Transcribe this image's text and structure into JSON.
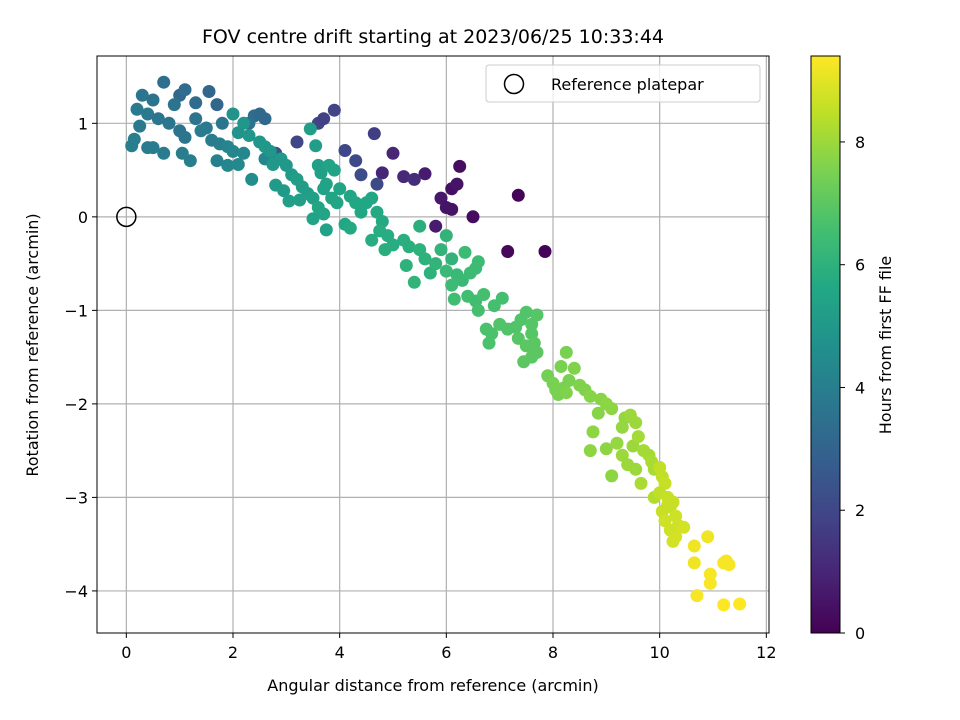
{
  "chart_data": {
    "type": "scatter",
    "title": "FOV centre drift starting at 2023/06/25 10:33:44",
    "xlabel": "Angular distance from reference (arcmin)",
    "ylabel": "Rotation from reference (arcmin)",
    "xlim": [
      -0.55,
      12.05
    ],
    "ylim": [
      -4.45,
      1.72
    ],
    "xticks": [
      0,
      2,
      4,
      6,
      8,
      10,
      12
    ],
    "yticks": [
      1,
      0,
      -1,
      -2,
      -3,
      -4
    ],
    "grid": true,
    "legend": {
      "label": "Reference platepar",
      "placement": "top-right"
    },
    "reference_point": {
      "x": 0,
      "y": 0
    },
    "colorbar": {
      "label": "Hours from first FF file",
      "colormap": "viridis",
      "range": [
        0,
        9.4
      ],
      "ticks": [
        0,
        2,
        4,
        6,
        8
      ]
    },
    "series": [
      {
        "points": [
          [
            5.0,
            0.68,
            1.0
          ],
          [
            5.6,
            0.46,
            0.7
          ],
          [
            5.9,
            0.2,
            0.6
          ],
          [
            6.0,
            0.1,
            0.5
          ],
          [
            6.1,
            0.3,
            0.4
          ],
          [
            6.2,
            0.35,
            0.5
          ],
          [
            6.25,
            0.54,
            0.3
          ],
          [
            6.5,
            0.0,
            0.3
          ],
          [
            6.1,
            0.08,
            0.5
          ],
          [
            5.8,
            -0.1,
            0.7
          ],
          [
            7.35,
            0.23,
            0.1
          ],
          [
            7.15,
            -0.37,
            0.2
          ],
          [
            7.85,
            -0.37,
            0.1
          ],
          [
            4.8,
            0.47,
            1.0
          ],
          [
            5.2,
            0.43,
            1.1
          ],
          [
            5.4,
            0.4,
            1.2
          ],
          [
            3.9,
            1.14,
            1.9
          ],
          [
            4.65,
            0.89,
            1.7
          ],
          [
            3.6,
            1.0,
            1.9
          ],
          [
            3.7,
            1.05,
            1.8
          ],
          [
            3.2,
            0.8,
            2.0
          ],
          [
            2.8,
            0.68,
            2.3
          ],
          [
            4.1,
            0.71,
            2.0
          ],
          [
            4.3,
            0.6,
            2.1
          ],
          [
            4.4,
            0.45,
            2.2
          ],
          [
            4.7,
            0.35,
            2.1
          ],
          [
            0.7,
            1.44,
            3.4
          ],
          [
            1.0,
            1.3,
            3.2
          ],
          [
            1.1,
            1.36,
            3.3
          ],
          [
            1.3,
            1.22,
            3.3
          ],
          [
            1.55,
            1.34,
            3.1
          ],
          [
            1.7,
            1.2,
            3.1
          ],
          [
            0.3,
            1.3,
            3.7
          ],
          [
            0.5,
            1.25,
            3.6
          ],
          [
            0.9,
            1.2,
            3.6
          ],
          [
            0.2,
            1.15,
            3.8
          ],
          [
            0.4,
            1.1,
            3.8
          ],
          [
            0.6,
            1.05,
            3.7
          ],
          [
            0.8,
            1.0,
            3.7
          ],
          [
            0.25,
            0.97,
            3.8
          ],
          [
            0.4,
            0.74,
            3.9
          ],
          [
            0.5,
            0.74,
            3.9
          ],
          [
            0.7,
            0.68,
            3.9
          ],
          [
            0.15,
            0.83,
            4.0
          ],
          [
            0.1,
            0.76,
            4.0
          ],
          [
            1.0,
            0.92,
            3.6
          ],
          [
            1.1,
            0.85,
            3.7
          ],
          [
            1.05,
            0.68,
            4.0
          ],
          [
            1.2,
            0.6,
            4.0
          ],
          [
            1.3,
            1.05,
            3.6
          ],
          [
            1.5,
            0.95,
            3.8
          ],
          [
            1.6,
            0.82,
            3.9
          ],
          [
            1.75,
            0.78,
            4.0
          ],
          [
            1.9,
            0.75,
            4.2
          ],
          [
            2.0,
            0.7,
            4.3
          ],
          [
            2.2,
            0.68,
            4.3
          ],
          [
            2.4,
            1.08,
            3.3
          ],
          [
            2.5,
            1.1,
            3.2
          ],
          [
            2.6,
            1.05,
            3.2
          ],
          [
            2.3,
            1.0,
            3.5
          ],
          [
            1.8,
            1.0,
            3.7
          ],
          [
            1.4,
            0.92,
            3.9
          ],
          [
            1.7,
            0.6,
            4.1
          ],
          [
            1.9,
            0.55,
            4.3
          ],
          [
            2.1,
            0.56,
            4.4
          ],
          [
            2.35,
            0.4,
            4.5
          ],
          [
            2.6,
            0.62,
            4.3
          ],
          [
            2.8,
            0.6,
            4.4
          ],
          [
            2.0,
            1.1,
            4.8
          ],
          [
            2.2,
            1.0,
            4.9
          ],
          [
            2.1,
            0.9,
            4.8
          ],
          [
            2.3,
            0.87,
            4.9
          ],
          [
            2.5,
            0.8,
            4.9
          ],
          [
            2.6,
            0.75,
            5.0
          ],
          [
            2.7,
            0.7,
            4.9
          ],
          [
            2.9,
            0.62,
            5.0
          ],
          [
            3.0,
            0.55,
            5.0
          ],
          [
            2.75,
            0.56,
            5.0
          ],
          [
            2.8,
            0.34,
            5.1
          ],
          [
            2.95,
            0.28,
            5.1
          ],
          [
            3.1,
            0.45,
            5.1
          ],
          [
            3.2,
            0.4,
            5.2
          ],
          [
            3.3,
            0.32,
            5.2
          ],
          [
            3.4,
            0.25,
            5.2
          ],
          [
            3.5,
            0.2,
            5.3
          ],
          [
            3.45,
            0.94,
            5.2
          ],
          [
            3.55,
            0.76,
            5.2
          ],
          [
            3.6,
            0.55,
            5.3
          ],
          [
            3.65,
            0.47,
            5.3
          ],
          [
            3.8,
            0.55,
            5.4
          ],
          [
            3.9,
            0.5,
            5.4
          ],
          [
            3.75,
            0.35,
            5.4
          ],
          [
            3.7,
            0.3,
            5.4
          ],
          [
            3.85,
            0.2,
            5.5
          ],
          [
            3.95,
            0.15,
            5.5
          ],
          [
            3.6,
            0.1,
            5.5
          ],
          [
            3.7,
            0.03,
            5.5
          ],
          [
            3.05,
            0.17,
            5.3
          ],
          [
            3.25,
            0.18,
            5.3
          ],
          [
            3.5,
            -0.02,
            5.4
          ],
          [
            3.75,
            -0.14,
            5.4
          ],
          [
            4.0,
            0.3,
            5.5
          ],
          [
            4.2,
            0.22,
            5.5
          ],
          [
            4.3,
            0.15,
            5.6
          ],
          [
            4.4,
            0.05,
            5.6
          ],
          [
            4.5,
            0.15,
            5.6
          ],
          [
            4.1,
            -0.08,
            5.6
          ],
          [
            4.2,
            -0.12,
            5.7
          ],
          [
            4.6,
            0.2,
            5.6
          ],
          [
            4.7,
            0.05,
            5.7
          ],
          [
            4.8,
            -0.05,
            5.7
          ],
          [
            4.75,
            -0.15,
            5.8
          ],
          [
            4.9,
            -0.2,
            5.8
          ],
          [
            5.0,
            -0.3,
            5.8
          ],
          [
            4.6,
            -0.25,
            5.8
          ],
          [
            4.85,
            -0.35,
            5.9
          ],
          [
            5.2,
            -0.25,
            5.9
          ],
          [
            5.3,
            -0.32,
            5.9
          ],
          [
            5.5,
            -0.1,
            5.9
          ],
          [
            5.5,
            -0.35,
            6.0
          ],
          [
            5.6,
            -0.45,
            6.0
          ],
          [
            5.25,
            -0.52,
            6.0
          ],
          [
            5.4,
            -0.7,
            6.1
          ],
          [
            5.7,
            -0.6,
            6.0
          ],
          [
            6.0,
            -0.2,
            6.1
          ],
          [
            5.9,
            -0.35,
            6.1
          ],
          [
            6.1,
            -0.45,
            6.1
          ],
          [
            5.8,
            -0.5,
            6.1
          ],
          [
            6.0,
            -0.58,
            6.3
          ],
          [
            6.2,
            -0.62,
            6.3
          ],
          [
            6.3,
            -0.68,
            6.3
          ],
          [
            6.45,
            -0.6,
            6.4
          ],
          [
            6.55,
            -0.55,
            6.4
          ],
          [
            6.6,
            -0.48,
            6.4
          ],
          [
            6.35,
            -0.38,
            6.4
          ],
          [
            6.1,
            -0.73,
            6.4
          ],
          [
            6.15,
            -0.88,
            6.5
          ],
          [
            6.4,
            -0.85,
            6.5
          ],
          [
            6.55,
            -0.9,
            6.5
          ],
          [
            6.7,
            -0.83,
            6.6
          ],
          [
            6.6,
            -1.0,
            6.6
          ],
          [
            6.9,
            -0.95,
            6.6
          ],
          [
            7.05,
            -0.87,
            6.6
          ],
          [
            6.75,
            -1.2,
            6.7
          ],
          [
            6.85,
            -1.25,
            6.7
          ],
          [
            6.8,
            -1.35,
            6.7
          ],
          [
            7.0,
            -1.15,
            6.8
          ],
          [
            7.15,
            -1.2,
            6.8
          ],
          [
            7.3,
            -1.18,
            6.8
          ],
          [
            7.4,
            -1.1,
            6.8
          ],
          [
            7.35,
            -1.3,
            6.9
          ],
          [
            7.5,
            -1.02,
            6.8
          ],
          [
            7.6,
            -1.15,
            6.9
          ],
          [
            7.7,
            -1.05,
            6.9
          ],
          [
            7.6,
            -1.25,
            6.9
          ],
          [
            7.5,
            -1.38,
            7.0
          ],
          [
            7.65,
            -1.35,
            7.0
          ],
          [
            7.7,
            -1.45,
            7.0
          ],
          [
            7.6,
            -1.5,
            7.0
          ],
          [
            7.45,
            -1.55,
            7.0
          ],
          [
            7.9,
            -1.7,
            7.4
          ],
          [
            8.0,
            -1.78,
            7.5
          ],
          [
            8.05,
            -1.85,
            7.5
          ],
          [
            8.1,
            -1.9,
            7.5
          ],
          [
            8.2,
            -1.83,
            7.5
          ],
          [
            8.3,
            -1.75,
            7.5
          ],
          [
            8.25,
            -1.88,
            7.6
          ],
          [
            8.15,
            -1.6,
            7.5
          ],
          [
            8.25,
            -1.45,
            7.5
          ],
          [
            8.4,
            -1.62,
            7.6
          ],
          [
            8.5,
            -1.8,
            7.6
          ],
          [
            8.6,
            -1.85,
            7.6
          ],
          [
            8.7,
            -1.92,
            7.7
          ],
          [
            8.9,
            -1.95,
            7.7
          ],
          [
            8.85,
            -2.1,
            7.7
          ],
          [
            9.0,
            -2.0,
            7.8
          ],
          [
            9.1,
            -2.05,
            7.8
          ],
          [
            8.75,
            -2.3,
            7.8
          ],
          [
            8.7,
            -2.5,
            7.8
          ],
          [
            9.0,
            -2.48,
            7.8
          ],
          [
            9.1,
            -2.77,
            7.8
          ],
          [
            9.2,
            -2.42,
            7.9
          ],
          [
            9.3,
            -2.25,
            7.9
          ],
          [
            9.35,
            -2.15,
            7.9
          ],
          [
            9.45,
            -2.12,
            8.0
          ],
          [
            9.55,
            -2.2,
            8.0
          ],
          [
            9.3,
            -2.55,
            8.0
          ],
          [
            9.4,
            -2.65,
            8.0
          ],
          [
            9.55,
            -2.7,
            8.0
          ],
          [
            9.5,
            -2.45,
            8.0
          ],
          [
            9.6,
            -2.35,
            8.1
          ],
          [
            9.7,
            -2.5,
            8.1
          ],
          [
            9.8,
            -2.55,
            8.1
          ],
          [
            9.85,
            -2.62,
            8.2
          ],
          [
            9.65,
            -2.85,
            8.2
          ],
          [
            9.9,
            -2.7,
            8.2
          ],
          [
            9.9,
            -3.0,
            8.3
          ],
          [
            10.0,
            -2.68,
            8.5
          ],
          [
            10.05,
            -2.78,
            8.5
          ],
          [
            10.1,
            -2.85,
            8.6
          ],
          [
            10.0,
            -2.95,
            8.5
          ],
          [
            10.15,
            -3.0,
            8.6
          ],
          [
            10.2,
            -3.1,
            8.6
          ],
          [
            10.05,
            -3.15,
            8.6
          ],
          [
            10.25,
            -3.05,
            8.6
          ],
          [
            10.3,
            -3.2,
            8.7
          ],
          [
            10.1,
            -3.25,
            8.7
          ],
          [
            10.35,
            -3.3,
            8.7
          ],
          [
            10.2,
            -3.35,
            8.7
          ],
          [
            10.3,
            -3.42,
            8.8
          ],
          [
            10.25,
            -3.47,
            8.8
          ],
          [
            10.45,
            -3.32,
            8.8
          ],
          [
            10.15,
            -3.08,
            8.6
          ],
          [
            10.65,
            -3.52,
            9.2
          ],
          [
            10.9,
            -3.42,
            9.2
          ],
          [
            10.65,
            -3.7,
            9.2
          ],
          [
            10.95,
            -3.82,
            9.3
          ],
          [
            10.95,
            -3.92,
            9.3
          ],
          [
            10.7,
            -4.05,
            9.3
          ],
          [
            11.2,
            -3.7,
            9.3
          ],
          [
            11.25,
            -3.68,
            9.3
          ],
          [
            11.3,
            -3.72,
            9.3
          ],
          [
            11.2,
            -4.15,
            9.4
          ],
          [
            11.5,
            -4.14,
            9.4
          ]
        ]
      }
    ]
  }
}
